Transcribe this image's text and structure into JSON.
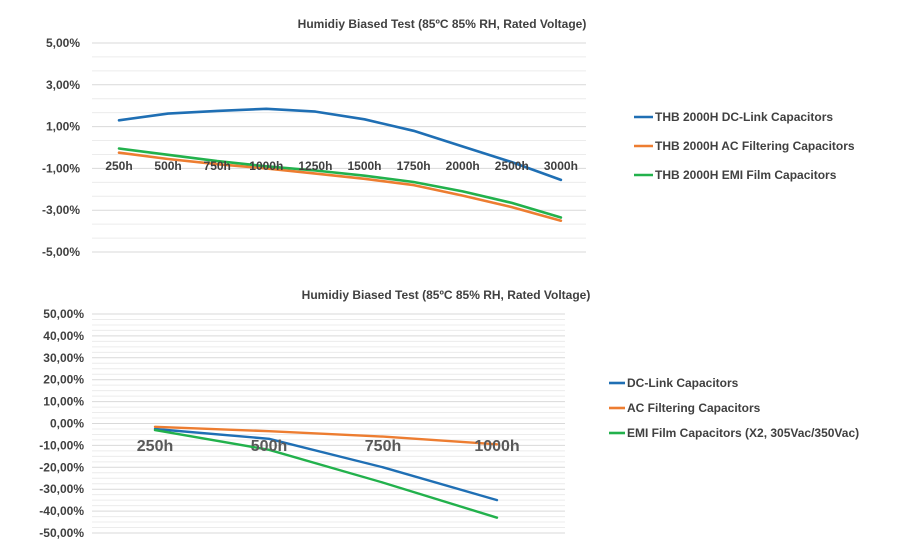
{
  "chart_data": [
    {
      "type": "line",
      "title": "Humidiy Biased Test (85ºC 85% RH, Rated Voltage)",
      "categories": [
        "250h",
        "500h",
        "750h",
        "1000h",
        "1250h",
        "1500h",
        "1750h",
        "2000h",
        "2500h",
        "3000h"
      ],
      "ylim": [
        -5,
        5
      ],
      "yticks": [
        5,
        3,
        1,
        -1,
        -3,
        -5
      ],
      "ytick_labels": [
        "5,00%",
        "3,00%",
        "1,00%",
        "-1,00%",
        "-3,00%",
        "-5,00%"
      ],
      "legend_position": "right",
      "series": [
        {
          "name": "THB 2000H DC-Link Capacitors",
          "color": "#1f6fb4",
          "values": [
            1.3,
            1.62,
            1.75,
            1.85,
            1.72,
            1.35,
            0.8,
            0.05,
            -0.7,
            -1.55
          ]
        },
        {
          "name": "THB 2000H AC Filtering Capacitors",
          "color": "#ed7d31",
          "values": [
            -0.25,
            -0.55,
            -0.8,
            -1.0,
            -1.25,
            -1.5,
            -1.8,
            -2.3,
            -2.85,
            -3.5
          ]
        },
        {
          "name": "THB 2000H EMI Film Capacitors",
          "color": "#22b14c",
          "values": [
            -0.05,
            -0.35,
            -0.65,
            -0.9,
            -1.1,
            -1.35,
            -1.65,
            -2.1,
            -2.65,
            -3.35
          ]
        }
      ]
    },
    {
      "type": "line",
      "title": "Humidiy Biased Test (85ºC 85% RH, Rated Voltage)",
      "categories": [
        "250h",
        "500h",
        "750h",
        "1000h"
      ],
      "ylim": [
        -50,
        50
      ],
      "yticks": [
        50,
        40,
        30,
        20,
        10,
        0,
        -10,
        -20,
        -30,
        -40,
        -50
      ],
      "ytick_labels": [
        "50,00%",
        "40,00%",
        "30,00%",
        "20,00%",
        "10,00%",
        "0,00%",
        "-10,00%",
        "-20,00%",
        "-30,00%",
        "-40,00%",
        "-50,00%"
      ],
      "legend_position": "right",
      "series": [
        {
          "name": "DC-Link Capacitors",
          "color": "#1f6fb4",
          "values": [
            -2.5,
            -7,
            -20,
            -35
          ]
        },
        {
          "name": "AC Filtering Capacitors",
          "color": "#ed7d31",
          "values": [
            -1.5,
            -3.5,
            -6,
            -9.5
          ]
        },
        {
          "name": "EMI Film Capacitors (X2, 305Vac/350Vac)",
          "color": "#22b14c",
          "values": [
            -3,
            -12,
            -27,
            -43
          ]
        }
      ]
    }
  ]
}
